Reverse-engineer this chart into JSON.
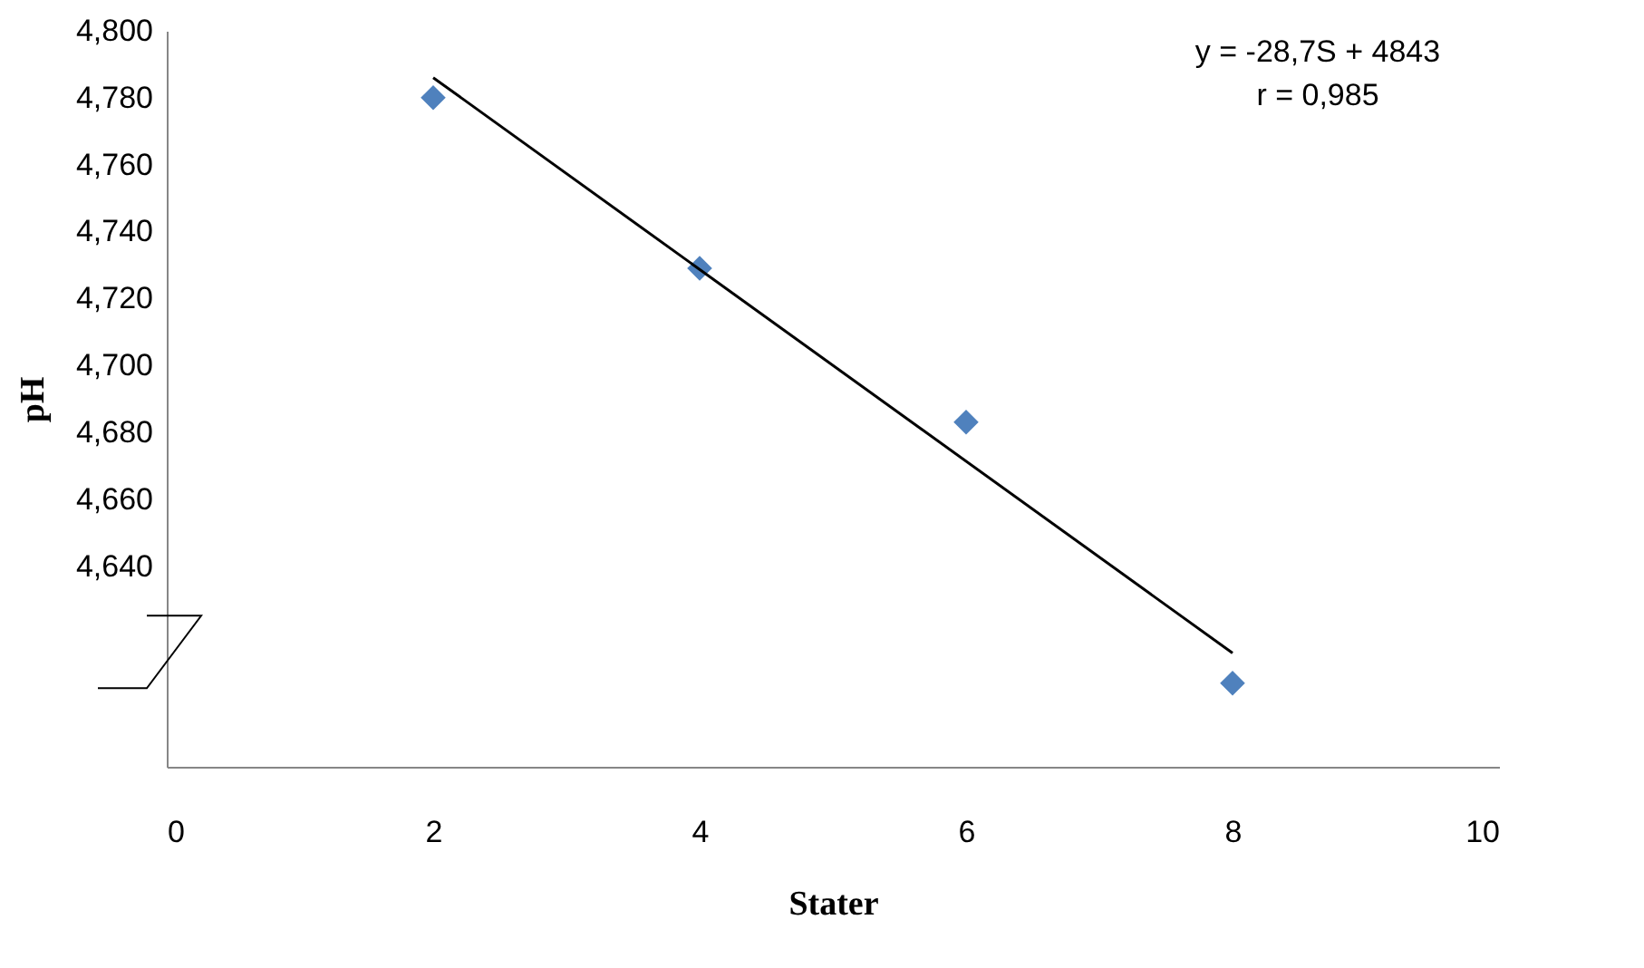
{
  "chart_data": {
    "type": "scatter",
    "xlabel": "Stater",
    "ylabel": "pH",
    "annotations": [
      "y = -28,7S + 4843",
      "r = 0,985"
    ],
    "x": [
      2,
      4,
      6,
      8
    ],
    "series": [
      {
        "color": "#4f81bd",
        "marker": "diamond",
        "values": [
          4.78,
          4.729,
          4.683,
          4.605
        ]
      },
      {
        "type": "line",
        "color": "#000000",
        "x": [
          2,
          8
        ],
        "values": [
          4.786,
          4.614
        ],
        "marker": "none",
        "line_style": "solid"
      }
    ],
    "xlim": [
      0,
      10
    ],
    "xticks": [
      0,
      2,
      4,
      6,
      8,
      10
    ],
    "ylim": [
      4.58,
      4.8
    ],
    "yticks": [
      {
        "value": 4.64,
        "label": "4,640"
      },
      {
        "value": 4.66,
        "label": "4,660"
      },
      {
        "value": 4.68,
        "label": "4,680"
      },
      {
        "value": 4.7,
        "label": "4,700"
      },
      {
        "value": 4.72,
        "label": "4,720"
      },
      {
        "value": 4.74,
        "label": "4,740"
      },
      {
        "value": 4.76,
        "label": "4,760"
      },
      {
        "value": 4.78,
        "label": "4,780"
      },
      {
        "value": 4.8,
        "label": "4,800"
      }
    ],
    "grid": false
  }
}
